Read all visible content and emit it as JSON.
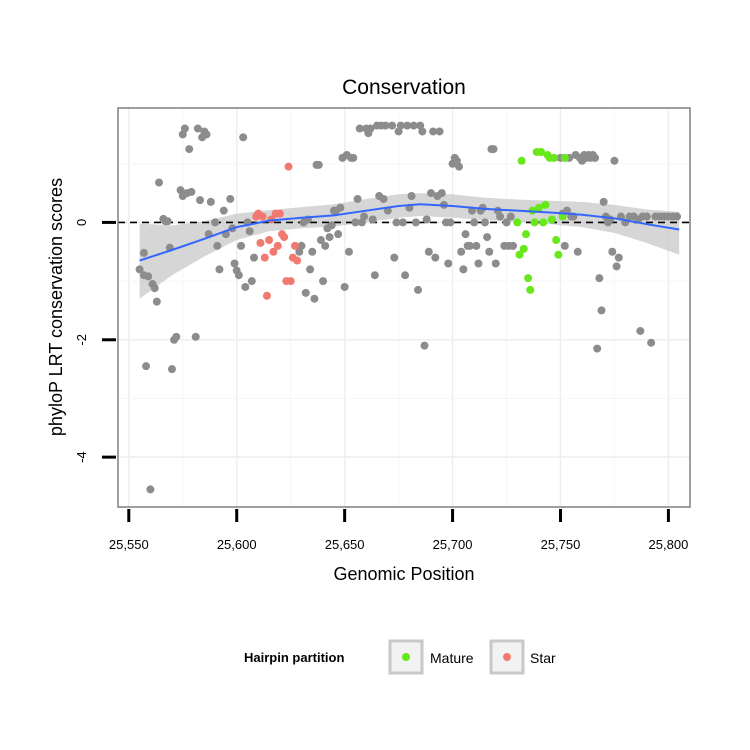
{
  "chart_data": {
    "type": "scatter",
    "title": "Conservation",
    "xlabel": "Genomic Position",
    "ylabel": "phyloP LRT conservation scores",
    "xlim": [
      25545,
      25810
    ],
    "ylim": [
      -4.85,
      1.95
    ],
    "x_ticks": [
      25550,
      25600,
      25650,
      25700,
      25750,
      25800
    ],
    "x_tick_labels": [
      "25,550",
      "25,600",
      "25,650",
      "25,700",
      "25,750",
      "25,800"
    ],
    "y_ticks": [
      -4,
      -2,
      0
    ],
    "y_tick_labels": [
      "-4",
      "-2",
      "0"
    ],
    "grid": true,
    "reference_line": {
      "y": 0,
      "style": "dashed"
    },
    "legend": {
      "title": "Hairpin partition",
      "position": "bottom",
      "entries": [
        {
          "label": "Mature",
          "color": "#7CFC00"
        },
        {
          "label": "Star",
          "color": "#F8766D"
        }
      ]
    },
    "colors": {
      "other": "#8c8c8c",
      "mature": "#66e81a",
      "star": "#f07a6f",
      "smooth": "#3366ff",
      "ribbon": "#c8c8c8"
    },
    "series": [
      {
        "group": "other",
        "points": [
          [
            25555,
            -0.8
          ],
          [
            25557,
            -0.52
          ],
          [
            25557,
            -0.9
          ],
          [
            25558,
            -2.45
          ],
          [
            25559,
            -0.92
          ],
          [
            25560,
            -4.55
          ],
          [
            25561,
            -1.05
          ],
          [
            25562,
            -1.12
          ],
          [
            25563,
            -1.35
          ],
          [
            25564,
            0.68
          ],
          [
            25566,
            0.06
          ],
          [
            25567,
            0.02
          ],
          [
            25568,
            0.02
          ],
          [
            25569,
            -0.43
          ],
          [
            25570,
            -2.5
          ],
          [
            25571,
            -2.0
          ],
          [
            25572,
            -1.95
          ],
          [
            25574,
            0.55
          ],
          [
            25575,
            0.45
          ],
          [
            25575,
            1.5
          ],
          [
            25576,
            1.6
          ],
          [
            25577,
            0.5
          ],
          [
            25578,
            1.25
          ],
          [
            25579,
            0.52
          ],
          [
            25581,
            -1.95
          ],
          [
            25582,
            1.6
          ],
          [
            25583,
            0.38
          ],
          [
            25584,
            1.45
          ],
          [
            25585,
            1.55
          ],
          [
            25586,
            1.5
          ],
          [
            25587,
            -0.2
          ],
          [
            25588,
            0.35
          ],
          [
            25590,
            0.0
          ],
          [
            25591,
            -0.4
          ],
          [
            25592,
            -0.8
          ],
          [
            25594,
            0.2
          ],
          [
            25595,
            -0.2
          ],
          [
            25597,
            0.4
          ],
          [
            25598,
            -0.1
          ],
          [
            25599,
            -0.7
          ],
          [
            25600,
            -0.82
          ],
          [
            25601,
            -0.9
          ],
          [
            25602,
            -0.4
          ],
          [
            25603,
            1.45
          ],
          [
            25604,
            -1.1
          ],
          [
            25605,
            0.0
          ],
          [
            25606,
            -0.15
          ],
          [
            25607,
            -1.0
          ],
          [
            25608,
            -0.6
          ],
          [
            25629,
            -0.5
          ],
          [
            25630,
            -0.4
          ],
          [
            25631,
            0.0
          ],
          [
            25632,
            -1.2
          ],
          [
            25633,
            0.05
          ],
          [
            25634,
            -0.8
          ],
          [
            25635,
            -0.5
          ],
          [
            25636,
            -1.3
          ],
          [
            25637,
            0.98
          ],
          [
            25638,
            0.98
          ],
          [
            25639,
            -0.3
          ],
          [
            25640,
            -1.0
          ],
          [
            25641,
            -0.4
          ],
          [
            25642,
            -0.1
          ],
          [
            25643,
            -0.25
          ],
          [
            25644,
            -0.05
          ],
          [
            25645,
            0.2
          ],
          [
            25646,
            0.2
          ],
          [
            25647,
            -0.2
          ],
          [
            25648,
            0.25
          ],
          [
            25649,
            1.1
          ],
          [
            25650,
            -1.1
          ],
          [
            25651,
            1.15
          ],
          [
            25652,
            -0.5
          ],
          [
            25653,
            1.1
          ],
          [
            25654,
            1.1
          ],
          [
            25655,
            0.0
          ],
          [
            25656,
            0.4
          ],
          [
            25657,
            1.6
          ],
          [
            25658,
            0.0
          ],
          [
            25659,
            0.1
          ],
          [
            25660,
            1.6
          ],
          [
            25661,
            1.52
          ],
          [
            25662,
            1.6
          ],
          [
            25663,
            0.05
          ],
          [
            25664,
            -0.9
          ],
          [
            25665,
            1.65
          ],
          [
            25666,
            0.45
          ],
          [
            25667,
            1.65
          ],
          [
            25668,
            0.4
          ],
          [
            25669,
            1.65
          ],
          [
            25670,
            0.2
          ],
          [
            25672,
            1.65
          ],
          [
            25673,
            -0.6
          ],
          [
            25674,
            0.0
          ],
          [
            25675,
            1.55
          ],
          [
            25676,
            1.65
          ],
          [
            25677,
            0.0
          ],
          [
            25678,
            -0.9
          ],
          [
            25679,
            1.65
          ],
          [
            25680,
            0.25
          ],
          [
            25681,
            0.45
          ],
          [
            25682,
            1.65
          ],
          [
            25683,
            0.0
          ],
          [
            25684,
            -1.15
          ],
          [
            25685,
            1.65
          ],
          [
            25686,
            1.55
          ],
          [
            25687,
            -2.1
          ],
          [
            25688,
            0.05
          ],
          [
            25689,
            -0.5
          ],
          [
            25690,
            0.5
          ],
          [
            25691,
            1.55
          ],
          [
            25692,
            -0.6
          ],
          [
            25693,
            0.45
          ],
          [
            25694,
            1.55
          ],
          [
            25695,
            0.5
          ],
          [
            25696,
            0.3
          ],
          [
            25697,
            0.0
          ],
          [
            25698,
            -0.7
          ],
          [
            25699,
            0.0
          ],
          [
            25700,
            1.0
          ],
          [
            25701,
            1.1
          ],
          [
            25702,
            1.05
          ],
          [
            25703,
            0.95
          ],
          [
            25704,
            -0.5
          ],
          [
            25705,
            -0.8
          ],
          [
            25706,
            -0.2
          ],
          [
            25707,
            -0.4
          ],
          [
            25708,
            -0.4
          ],
          [
            25709,
            0.2
          ],
          [
            25710,
            0.0
          ],
          [
            25711,
            -0.4
          ],
          [
            25712,
            -0.7
          ],
          [
            25713,
            0.2
          ],
          [
            25714,
            0.25
          ],
          [
            25715,
            0.0
          ],
          [
            25716,
            -0.25
          ],
          [
            25717,
            -0.5
          ],
          [
            25718,
            1.25
          ],
          [
            25719,
            1.25
          ],
          [
            25720,
            -0.7
          ],
          [
            25721,
            0.2
          ],
          [
            25722,
            0.1
          ],
          [
            25724,
            -0.4
          ],
          [
            25725,
            0.0
          ],
          [
            25726,
            -0.4
          ],
          [
            25727,
            0.1
          ],
          [
            25728,
            -0.4
          ],
          [
            25750,
            1.1
          ],
          [
            25751,
            0.15
          ],
          [
            25752,
            -0.4
          ],
          [
            25753,
            0.2
          ],
          [
            25754,
            1.1
          ],
          [
            25755,
            0.1
          ],
          [
            25756,
            0.1
          ],
          [
            25757,
            1.15
          ],
          [
            25758,
            -0.5
          ],
          [
            25759,
            1.1
          ],
          [
            25760,
            1.05
          ],
          [
            25761,
            1.15
          ],
          [
            25762,
            1.1
          ],
          [
            25763,
            1.15
          ],
          [
            25764,
            1.1
          ],
          [
            25765,
            1.15
          ],
          [
            25766,
            1.1
          ],
          [
            25767,
            -2.15
          ],
          [
            25768,
            -0.95
          ],
          [
            25769,
            -1.5
          ],
          [
            25770,
            0.35
          ],
          [
            25771,
            0.1
          ],
          [
            25772,
            0.0
          ],
          [
            25773,
            0.05
          ],
          [
            25774,
            -0.5
          ],
          [
            25775,
            1.05
          ],
          [
            25776,
            -0.75
          ],
          [
            25777,
            -0.6
          ],
          [
            25778,
            0.1
          ],
          [
            25780,
            0.0
          ],
          [
            25782,
            0.1
          ],
          [
            25784,
            0.1
          ],
          [
            25786,
            0.05
          ],
          [
            25787,
            -1.85
          ],
          [
            25788,
            0.1
          ],
          [
            25790,
            0.1
          ],
          [
            25792,
            -2.05
          ],
          [
            25794,
            0.1
          ],
          [
            25796,
            0.1
          ],
          [
            25798,
            0.1
          ],
          [
            25800,
            0.1
          ],
          [
            25802,
            0.1
          ],
          [
            25804,
            0.1
          ]
        ]
      },
      {
        "group": "star",
        "name": "Star",
        "points": [
          [
            25609,
            0.1
          ],
          [
            25610,
            0.15
          ],
          [
            25611,
            -0.35
          ],
          [
            25612,
            0.1
          ],
          [
            25613,
            -0.6
          ],
          [
            25614,
            -1.25
          ],
          [
            25615,
            -0.3
          ],
          [
            25616,
            0.05
          ],
          [
            25617,
            -0.5
          ],
          [
            25618,
            0.15
          ],
          [
            25619,
            -0.4
          ],
          [
            25620,
            0.15
          ],
          [
            25621,
            -0.2
          ],
          [
            25622,
            -0.25
          ],
          [
            25623,
            -1.0
          ],
          [
            25624,
            0.95
          ],
          [
            25625,
            -1.0
          ],
          [
            25626,
            -0.6
          ],
          [
            25627,
            -0.4
          ],
          [
            25628,
            -0.65
          ]
        ]
      },
      {
        "group": "mature",
        "name": "Mature",
        "points": [
          [
            25730,
            0.0
          ],
          [
            25731,
            -0.55
          ],
          [
            25732,
            1.05
          ],
          [
            25733,
            -0.45
          ],
          [
            25734,
            -0.2
          ],
          [
            25735,
            -0.95
          ],
          [
            25736,
            -1.15
          ],
          [
            25737,
            0.2
          ],
          [
            25738,
            0.0
          ],
          [
            25739,
            1.2
          ],
          [
            25740,
            0.25
          ],
          [
            25741,
            1.2
          ],
          [
            25742,
            0.0
          ],
          [
            25743,
            0.3
          ],
          [
            25744,
            1.15
          ],
          [
            25745,
            1.1
          ],
          [
            25746,
            0.05
          ],
          [
            25747,
            1.1
          ],
          [
            25748,
            -0.3
          ],
          [
            25749,
            -0.55
          ],
          [
            25751,
            0.1
          ],
          [
            25752,
            1.1
          ]
        ]
      }
    ],
    "smooth_curve": [
      {
        "x": 25555,
        "y": -0.65,
        "lo": -1.3,
        "hi": -0.02
      },
      {
        "x": 25570,
        "y": -0.47,
        "lo": -0.9,
        "hi": -0.05
      },
      {
        "x": 25585,
        "y": -0.28,
        "lo": -0.58,
        "hi": 0.02
      },
      {
        "x": 25600,
        "y": -0.08,
        "lo": -0.3,
        "hi": 0.15
      },
      {
        "x": 25615,
        "y": 0.03,
        "lo": -0.15,
        "hi": 0.21
      },
      {
        "x": 25630,
        "y": 0.08,
        "lo": -0.1,
        "hi": 0.26
      },
      {
        "x": 25645,
        "y": 0.12,
        "lo": -0.07,
        "hi": 0.31
      },
      {
        "x": 25660,
        "y": 0.2,
        "lo": 0.0,
        "hi": 0.4
      },
      {
        "x": 25675,
        "y": 0.28,
        "lo": 0.08,
        "hi": 0.48
      },
      {
        "x": 25685,
        "y": 0.31,
        "lo": 0.11,
        "hi": 0.5
      },
      {
        "x": 25700,
        "y": 0.28,
        "lo": 0.08,
        "hi": 0.48
      },
      {
        "x": 25715,
        "y": 0.23,
        "lo": 0.04,
        "hi": 0.42
      },
      {
        "x": 25730,
        "y": 0.2,
        "lo": 0.01,
        "hi": 0.39
      },
      {
        "x": 25745,
        "y": 0.17,
        "lo": -0.03,
        "hi": 0.37
      },
      {
        "x": 25760,
        "y": 0.13,
        "lo": -0.08,
        "hi": 0.35
      },
      {
        "x": 25775,
        "y": 0.07,
        "lo": -0.18,
        "hi": 0.3
      },
      {
        "x": 25790,
        "y": -0.03,
        "lo": -0.35,
        "hi": 0.22
      },
      {
        "x": 25805,
        "y": -0.12,
        "lo": -0.55,
        "hi": 0.18
      }
    ]
  }
}
